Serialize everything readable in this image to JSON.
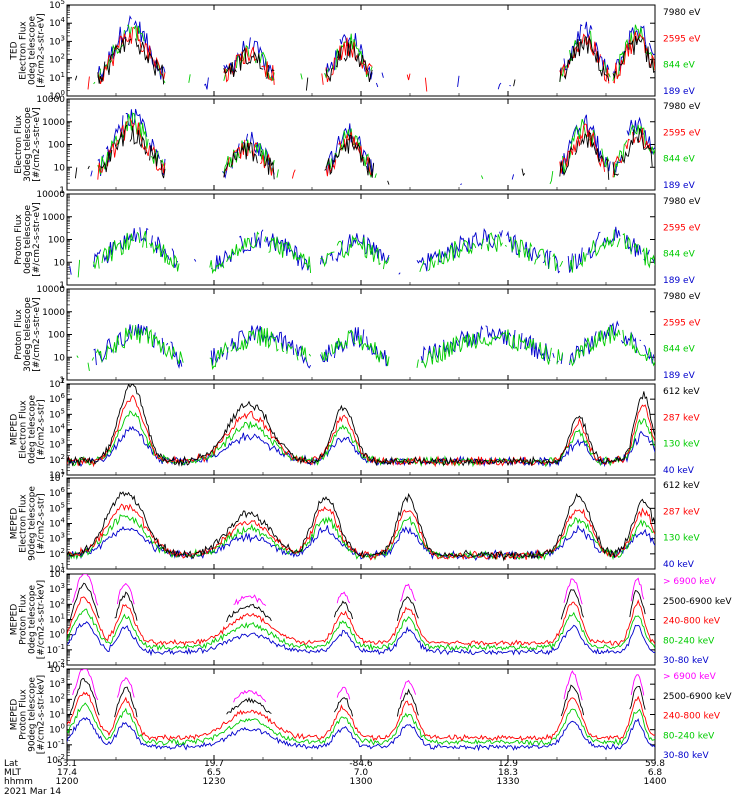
{
  "chart_data": {
    "type": "line",
    "x_range": [
      "1200",
      "1400"
    ],
    "panels": [
      {
        "id": "ted-electron-0deg",
        "ylabel": [
          "TED",
          "Electron Flux",
          "0deg telescope",
          "[#/cm2-s-str-eV]"
        ],
        "yscale": "log",
        "ylim": [
          1,
          100000
        ],
        "yticks": [
          "10^0",
          "10^1",
          "10^2",
          "10^3",
          "10^4",
          "10^5"
        ],
        "series": [
          {
            "name": "7980 eV",
            "color": "#000000"
          },
          {
            "name": "2595 eV",
            "color": "#ff0000"
          },
          {
            "name": "844 eV",
            "color": "#00cc00"
          },
          {
            "name": "189 eV",
            "color": "#0000cc"
          }
        ]
      },
      {
        "id": "ted-electron-30deg",
        "ylabel": [
          "Electron Flux",
          "30deg telescope",
          "[#/cm2-s-str-eV]"
        ],
        "yscale": "log",
        "ylim": [
          1,
          10000
        ],
        "yticks": [
          "1",
          "10",
          "100",
          "1000",
          "10000"
        ],
        "series": [
          {
            "name": "7980 eV",
            "color": "#000000"
          },
          {
            "name": "2595 eV",
            "color": "#ff0000"
          },
          {
            "name": "844 eV",
            "color": "#00cc00"
          },
          {
            "name": "189 eV",
            "color": "#0000cc"
          }
        ]
      },
      {
        "id": "ted-proton-0deg",
        "ylabel": [
          "Proton Flux",
          "0deg telescope",
          "[#/cm2-s-str-eV]"
        ],
        "yscale": "log",
        "ylim": [
          1,
          10000
        ],
        "yticks": [
          "1",
          "10",
          "100",
          "1000",
          "10000"
        ],
        "series": [
          {
            "name": "7980 eV",
            "color": "#000000"
          },
          {
            "name": "2595 eV",
            "color": "#ff0000"
          },
          {
            "name": "844 eV",
            "color": "#00cc00"
          },
          {
            "name": "189 eV",
            "color": "#0000cc"
          }
        ]
      },
      {
        "id": "ted-proton-30deg",
        "ylabel": [
          "Proton Flux",
          "30deg telescope",
          "[#/cm2-s-str-eV]"
        ],
        "yscale": "log",
        "ylim": [
          1,
          10000
        ],
        "yticks": [
          "1",
          "10",
          "100",
          "1000",
          "10000"
        ],
        "series": [
          {
            "name": "7980 eV",
            "color": "#000000"
          },
          {
            "name": "2595 eV",
            "color": "#ff0000"
          },
          {
            "name": "844 eV",
            "color": "#00cc00"
          },
          {
            "name": "189 eV",
            "color": "#0000cc"
          }
        ]
      },
      {
        "id": "meped-electron-0deg",
        "ylabel": [
          "MEPED",
          "Electron Flux",
          "0deg telescope",
          "[#/cm2-s-str]"
        ],
        "yscale": "log",
        "ylim": [
          10,
          10000000
        ],
        "yticks": [
          "10^1",
          "10^2",
          "10^3",
          "10^4",
          "10^5",
          "10^6",
          "10^7"
        ],
        "series": [
          {
            "name": "612 keV",
            "color": "#000000"
          },
          {
            "name": "287 keV",
            "color": "#ff0000"
          },
          {
            "name": "130 keV",
            "color": "#00cc00"
          },
          {
            "name": "40 keV",
            "color": "#0000cc"
          }
        ]
      },
      {
        "id": "meped-electron-90deg",
        "ylabel": [
          "MEPED",
          "Electron Flux",
          "90deg telescope",
          "[#/cm2-s-str]"
        ],
        "yscale": "log",
        "ylim": [
          10,
          10000000
        ],
        "yticks": [
          "10^1",
          "10^2",
          "10^3",
          "10^4",
          "10^5",
          "10^6",
          "10^7"
        ],
        "series": [
          {
            "name": "612 keV",
            "color": "#000000"
          },
          {
            "name": "287 keV",
            "color": "#ff0000"
          },
          {
            "name": "130 keV",
            "color": "#00cc00"
          },
          {
            "name": "40 keV",
            "color": "#0000cc"
          }
        ]
      },
      {
        "id": "meped-proton-0deg",
        "ylabel": [
          "MEPED",
          "Proton Flux",
          "0deg telescope",
          "[#/cm2-s-str-keV]"
        ],
        "yscale": "log",
        "ylim": [
          0.01,
          10000
        ],
        "yticks": [
          "10^-2",
          "10^-1",
          "10^0",
          "10^1",
          "10^2",
          "10^3",
          "10^4"
        ],
        "series": [
          {
            "name": "> 6900 keV",
            "color": "#ff00ff"
          },
          {
            "name": "2500-6900 keV",
            "color": "#000000"
          },
          {
            "name": "240-800 keV",
            "color": "#ff0000"
          },
          {
            "name": "80-240 keV",
            "color": "#00cc00"
          },
          {
            "name": "30-80 keV",
            "color": "#0000cc"
          }
        ]
      },
      {
        "id": "meped-proton-90deg",
        "ylabel": [
          "MEPED",
          "Proton Flux",
          "90deg telescope",
          "[#/cm2-s-str-keV]"
        ],
        "yscale": "log",
        "ylim": [
          0.01,
          10000
        ],
        "yticks": [
          "10^-2",
          "10^-1",
          "10^0",
          "10^1",
          "10^2",
          "10^3",
          "10^4"
        ],
        "series": [
          {
            "name": "> 6900 keV",
            "color": "#ff00ff"
          },
          {
            "name": "2500-6900 keV",
            "color": "#000000"
          },
          {
            "name": "240-800 keV",
            "color": "#ff0000"
          },
          {
            "name": "80-240 keV",
            "color": "#00cc00"
          },
          {
            "name": "30-80 keV",
            "color": "#0000cc"
          }
        ]
      }
    ],
    "x_axis": {
      "row_labels": [
        "Lat",
        "MLT",
        "hhmm"
      ],
      "ticks": [
        {
          "lat": "53.1",
          "mlt": "17.4",
          "hhmm": "1200"
        },
        {
          "lat": "19.7",
          "mlt": "6.5",
          "hhmm": "1230"
        },
        {
          "lat": "-84.6",
          "mlt": "7.0",
          "hhmm": "1300"
        },
        {
          "lat": "12.9",
          "mlt": "18.3",
          "hhmm": "1330"
        },
        {
          "lat": "59.8",
          "mlt": "6.8",
          "hhmm": "1400"
        }
      ],
      "date": "2021 Mar 14"
    }
  }
}
